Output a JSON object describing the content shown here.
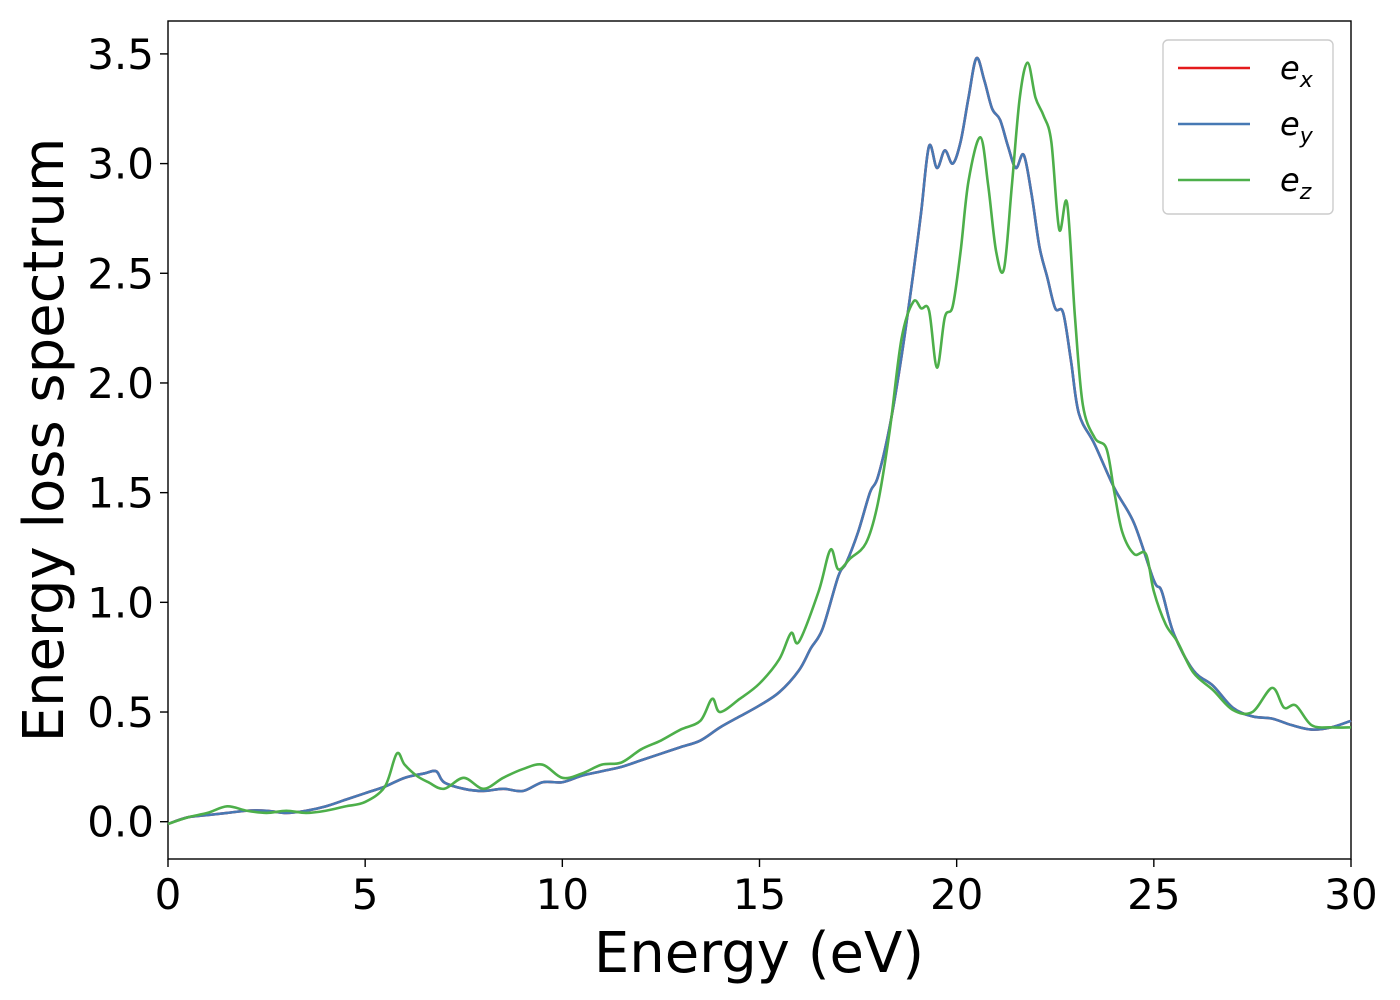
{
  "chart_data": {
    "type": "line",
    "xlabel": "Energy (eV)",
    "ylabel": "Energy loss spectrum",
    "xlim": [
      0,
      30
    ],
    "ylim": [
      -0.17,
      3.65
    ],
    "xticks": [
      0,
      5,
      10,
      15,
      20,
      25,
      30
    ],
    "yticks": [
      0.0,
      0.5,
      1.0,
      1.5,
      2.0,
      2.5,
      3.0,
      3.5
    ],
    "xtick_labels": [
      "0",
      "5",
      "10",
      "15",
      "20",
      "25",
      "30"
    ],
    "ytick_labels": [
      "0.0",
      "0.5",
      "1.0",
      "1.5",
      "2.0",
      "2.5",
      "3.0",
      "3.5"
    ],
    "grid": false,
    "legend_position": "top-right",
    "series": [
      {
        "name": "e_x",
        "label_base": "e",
        "label_sub": "x",
        "color": "#e41a1c",
        "x": [
          0,
          0.5,
          1,
          1.5,
          2,
          2.5,
          3,
          3.5,
          4,
          4.5,
          5,
          5.5,
          6,
          6.5,
          6.8,
          7,
          7.5,
          8,
          8.5,
          9,
          9.5,
          10,
          10.5,
          11,
          11.5,
          12,
          12.5,
          13,
          13.5,
          14,
          14.5,
          15,
          15.5,
          16,
          16.3,
          16.6,
          17,
          17.2,
          17.5,
          17.8,
          18,
          18.3,
          18.6,
          18.9,
          19.1,
          19.3,
          19.5,
          19.7,
          19.9,
          20.1,
          20.3,
          20.5,
          20.7,
          20.9,
          21.1,
          21.3,
          21.5,
          21.7,
          21.9,
          22.1,
          22.3,
          22.5,
          22.7,
          22.9,
          23.1,
          23.5,
          24,
          24.5,
          25,
          25.2,
          25.5,
          26,
          26.5,
          27,
          27.5,
          28,
          28.5,
          29,
          29.5,
          30
        ],
        "y": [
          -0.01,
          0.02,
          0.03,
          0.04,
          0.05,
          0.05,
          0.04,
          0.05,
          0.07,
          0.1,
          0.13,
          0.16,
          0.2,
          0.22,
          0.23,
          0.18,
          0.15,
          0.14,
          0.15,
          0.14,
          0.18,
          0.18,
          0.21,
          0.23,
          0.25,
          0.28,
          0.31,
          0.34,
          0.37,
          0.43,
          0.48,
          0.53,
          0.59,
          0.69,
          0.79,
          0.88,
          1.12,
          1.18,
          1.32,
          1.5,
          1.57,
          1.8,
          2.12,
          2.5,
          2.78,
          3.08,
          2.98,
          3.06,
          3.0,
          3.1,
          3.3,
          3.48,
          3.38,
          3.25,
          3.2,
          3.08,
          2.98,
          3.04,
          2.86,
          2.62,
          2.48,
          2.34,
          2.32,
          2.1,
          1.86,
          1.72,
          1.52,
          1.36,
          1.1,
          1.05,
          0.86,
          0.69,
          0.62,
          0.52,
          0.48,
          0.47,
          0.44,
          0.42,
          0.43,
          0.46
        ]
      },
      {
        "name": "e_y",
        "label_base": "e",
        "label_sub": "y",
        "color": "#4779b4",
        "x": [
          0,
          0.5,
          1,
          1.5,
          2,
          2.5,
          3,
          3.5,
          4,
          4.5,
          5,
          5.5,
          6,
          6.5,
          6.8,
          7,
          7.5,
          8,
          8.5,
          9,
          9.5,
          10,
          10.5,
          11,
          11.5,
          12,
          12.5,
          13,
          13.5,
          14,
          14.5,
          15,
          15.5,
          16,
          16.3,
          16.6,
          17,
          17.2,
          17.5,
          17.8,
          18,
          18.3,
          18.6,
          18.9,
          19.1,
          19.3,
          19.5,
          19.7,
          19.9,
          20.1,
          20.3,
          20.5,
          20.7,
          20.9,
          21.1,
          21.3,
          21.5,
          21.7,
          21.9,
          22.1,
          22.3,
          22.5,
          22.7,
          22.9,
          23.1,
          23.5,
          24,
          24.5,
          25,
          25.2,
          25.5,
          26,
          26.5,
          27,
          27.5,
          28,
          28.5,
          29,
          29.5,
          30
        ],
        "y": [
          -0.01,
          0.02,
          0.03,
          0.04,
          0.05,
          0.05,
          0.04,
          0.05,
          0.07,
          0.1,
          0.13,
          0.16,
          0.2,
          0.22,
          0.23,
          0.18,
          0.15,
          0.14,
          0.15,
          0.14,
          0.18,
          0.18,
          0.21,
          0.23,
          0.25,
          0.28,
          0.31,
          0.34,
          0.37,
          0.43,
          0.48,
          0.53,
          0.59,
          0.69,
          0.79,
          0.88,
          1.12,
          1.18,
          1.32,
          1.5,
          1.57,
          1.8,
          2.12,
          2.5,
          2.78,
          3.08,
          2.98,
          3.06,
          3.0,
          3.1,
          3.3,
          3.48,
          3.38,
          3.25,
          3.2,
          3.08,
          2.98,
          3.04,
          2.86,
          2.62,
          2.48,
          2.34,
          2.32,
          2.1,
          1.86,
          1.72,
          1.52,
          1.36,
          1.1,
          1.05,
          0.86,
          0.69,
          0.62,
          0.52,
          0.48,
          0.47,
          0.44,
          0.42,
          0.43,
          0.46
        ]
      },
      {
        "name": "e_z",
        "label_base": "e",
        "label_sub": "z",
        "color": "#4daf4a",
        "x": [
          0,
          0.5,
          1,
          1.5,
          2,
          2.5,
          3,
          3.5,
          4,
          4.5,
          5,
          5.5,
          5.8,
          6,
          6.3,
          6.6,
          7,
          7.5,
          8,
          8.5,
          9,
          9.5,
          10,
          10.5,
          11,
          11.5,
          12,
          12.5,
          13,
          13.5,
          13.8,
          14,
          14.5,
          15,
          15.5,
          15.8,
          16,
          16.5,
          16.8,
          17,
          17.3,
          17.7,
          18,
          18.3,
          18.6,
          18.9,
          19.1,
          19.3,
          19.5,
          19.7,
          19.9,
          20.1,
          20.3,
          20.6,
          20.8,
          21,
          21.2,
          21.4,
          21.6,
          21.8,
          22,
          22.2,
          22.4,
          22.6,
          22.8,
          23,
          23.2,
          23.5,
          23.8,
          24,
          24.2,
          24.5,
          24.8,
          25,
          25.3,
          25.6,
          26,
          26.5,
          27,
          27.5,
          28,
          28.3,
          28.6,
          29,
          29.5,
          30
        ],
        "y": [
          -0.01,
          0.02,
          0.04,
          0.07,
          0.05,
          0.04,
          0.05,
          0.04,
          0.05,
          0.07,
          0.09,
          0.16,
          0.31,
          0.26,
          0.21,
          0.18,
          0.15,
          0.2,
          0.15,
          0.2,
          0.24,
          0.26,
          0.2,
          0.22,
          0.26,
          0.27,
          0.33,
          0.37,
          0.42,
          0.46,
          0.56,
          0.5,
          0.56,
          0.63,
          0.74,
          0.86,
          0.82,
          1.05,
          1.24,
          1.15,
          1.2,
          1.27,
          1.45,
          1.78,
          2.2,
          2.37,
          2.34,
          2.33,
          2.07,
          2.3,
          2.35,
          2.6,
          2.92,
          3.12,
          2.9,
          2.6,
          2.52,
          2.9,
          3.3,
          3.46,
          3.3,
          3.22,
          3.1,
          2.7,
          2.82,
          2.3,
          1.9,
          1.75,
          1.7,
          1.5,
          1.32,
          1.22,
          1.22,
          1.05,
          0.9,
          0.82,
          0.68,
          0.6,
          0.51,
          0.5,
          0.61,
          0.52,
          0.53,
          0.44,
          0.43,
          0.43
        ]
      }
    ]
  }
}
